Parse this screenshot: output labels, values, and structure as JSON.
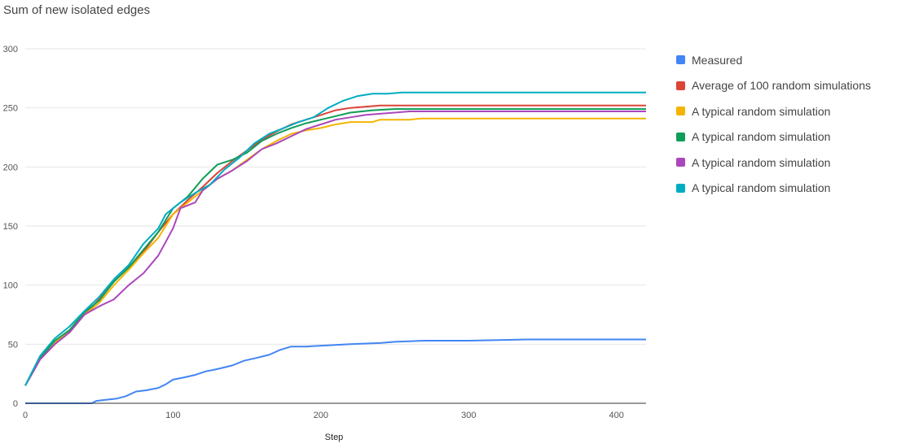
{
  "chart_data": {
    "type": "line",
    "title": "Sum of new isolated edges",
    "xlabel": "Step",
    "ylabel": "",
    "xlim": [
      0,
      420
    ],
    "ylim": [
      0,
      300
    ],
    "xticks": [
      0,
      100,
      200,
      300,
      400
    ],
    "yticks": [
      0,
      50,
      100,
      150,
      200,
      250,
      300
    ],
    "grid": true,
    "legend_position": "right",
    "series": [
      {
        "name": "Measured",
        "color": "#4285f4",
        "points": [
          [
            0,
            0
          ],
          [
            45,
            0
          ],
          [
            48,
            2
          ],
          [
            55,
            3
          ],
          [
            62,
            4
          ],
          [
            68,
            6
          ],
          [
            75,
            10
          ],
          [
            82,
            11
          ],
          [
            90,
            13
          ],
          [
            95,
            16
          ],
          [
            100,
            20
          ],
          [
            108,
            22
          ],
          [
            115,
            24
          ],
          [
            122,
            27
          ],
          [
            130,
            29
          ],
          [
            140,
            32
          ],
          [
            148,
            36
          ],
          [
            155,
            38
          ],
          [
            165,
            41
          ],
          [
            172,
            45
          ],
          [
            180,
            48
          ],
          [
            190,
            48
          ],
          [
            205,
            49
          ],
          [
            220,
            50
          ],
          [
            240,
            51
          ],
          [
            250,
            52
          ],
          [
            270,
            53
          ],
          [
            300,
            53
          ],
          [
            340,
            54
          ],
          [
            420,
            54
          ]
        ]
      },
      {
        "name": "Average of 100 random simulations",
        "color": "#db4437",
        "points": [
          [
            0,
            15
          ],
          [
            10,
            37
          ],
          [
            20,
            50
          ],
          [
            30,
            62
          ],
          [
            40,
            75
          ],
          [
            50,
            88
          ],
          [
            60,
            103
          ],
          [
            70,
            115
          ],
          [
            80,
            128
          ],
          [
            90,
            145
          ],
          [
            100,
            160
          ],
          [
            110,
            172
          ],
          [
            120,
            183
          ],
          [
            130,
            195
          ],
          [
            140,
            205
          ],
          [
            150,
            214
          ],
          [
            160,
            223
          ],
          [
            170,
            230
          ],
          [
            180,
            236
          ],
          [
            190,
            240
          ],
          [
            200,
            244
          ],
          [
            210,
            248
          ],
          [
            220,
            250
          ],
          [
            230,
            251
          ],
          [
            240,
            252
          ],
          [
            260,
            252
          ],
          [
            300,
            252
          ],
          [
            420,
            252
          ]
        ]
      },
      {
        "name": "A typical random simulation",
        "color": "#f4b400",
        "points": [
          [
            0,
            15
          ],
          [
            10,
            38
          ],
          [
            20,
            52
          ],
          [
            30,
            60
          ],
          [
            40,
            75
          ],
          [
            50,
            85
          ],
          [
            60,
            100
          ],
          [
            70,
            113
          ],
          [
            80,
            127
          ],
          [
            90,
            140
          ],
          [
            100,
            160
          ],
          [
            110,
            170
          ],
          [
            120,
            180
          ],
          [
            130,
            190
          ],
          [
            140,
            197
          ],
          [
            150,
            206
          ],
          [
            160,
            215
          ],
          [
            170,
            222
          ],
          [
            180,
            228
          ],
          [
            190,
            231
          ],
          [
            200,
            233
          ],
          [
            210,
            236
          ],
          [
            220,
            238
          ],
          [
            235,
            238
          ],
          [
            240,
            240
          ],
          [
            260,
            240
          ],
          [
            268,
            241
          ],
          [
            300,
            241
          ],
          [
            420,
            241
          ]
        ]
      },
      {
        "name": "A typical random simulation",
        "color": "#0f9d58",
        "points": [
          [
            0,
            15
          ],
          [
            10,
            38
          ],
          [
            20,
            53
          ],
          [
            30,
            62
          ],
          [
            40,
            77
          ],
          [
            50,
            87
          ],
          [
            60,
            103
          ],
          [
            70,
            115
          ],
          [
            80,
            130
          ],
          [
            90,
            145
          ],
          [
            100,
            165
          ],
          [
            110,
            175
          ],
          [
            120,
            190
          ],
          [
            130,
            202
          ],
          [
            140,
            206
          ],
          [
            150,
            212
          ],
          [
            160,
            222
          ],
          [
            170,
            228
          ],
          [
            180,
            233
          ],
          [
            190,
            237
          ],
          [
            200,
            240
          ],
          [
            210,
            243
          ],
          [
            220,
            246
          ],
          [
            235,
            248
          ],
          [
            250,
            249
          ],
          [
            300,
            249
          ],
          [
            420,
            249
          ]
        ]
      },
      {
        "name": "A typical random simulation",
        "color": "#ab47bc",
        "points": [
          [
            0,
            15
          ],
          [
            10,
            37
          ],
          [
            20,
            50
          ],
          [
            30,
            60
          ],
          [
            40,
            75
          ],
          [
            50,
            82
          ],
          [
            60,
            88
          ],
          [
            70,
            100
          ],
          [
            80,
            110
          ],
          [
            90,
            125
          ],
          [
            100,
            148
          ],
          [
            105,
            165
          ],
          [
            115,
            170
          ],
          [
            120,
            180
          ],
          [
            130,
            190
          ],
          [
            140,
            197
          ],
          [
            150,
            205
          ],
          [
            160,
            215
          ],
          [
            170,
            220
          ],
          [
            180,
            226
          ],
          [
            190,
            232
          ],
          [
            200,
            236
          ],
          [
            210,
            240
          ],
          [
            220,
            242
          ],
          [
            230,
            244
          ],
          [
            240,
            245
          ],
          [
            250,
            246
          ],
          [
            260,
            247
          ],
          [
            300,
            247
          ],
          [
            420,
            247
          ]
        ]
      },
      {
        "name": "A typical random simulation",
        "color": "#00acc1",
        "points": [
          [
            0,
            15
          ],
          [
            10,
            40
          ],
          [
            20,
            55
          ],
          [
            30,
            65
          ],
          [
            40,
            78
          ],
          [
            50,
            90
          ],
          [
            60,
            105
          ],
          [
            70,
            117
          ],
          [
            80,
            135
          ],
          [
            90,
            148
          ],
          [
            95,
            160
          ],
          [
            105,
            170
          ],
          [
            115,
            178
          ],
          [
            125,
            185
          ],
          [
            135,
            198
          ],
          [
            145,
            208
          ],
          [
            155,
            220
          ],
          [
            165,
            228
          ],
          [
            175,
            233
          ],
          [
            185,
            238
          ],
          [
            195,
            242
          ],
          [
            205,
            250
          ],
          [
            215,
            256
          ],
          [
            225,
            260
          ],
          [
            235,
            262
          ],
          [
            245,
            262
          ],
          [
            255,
            263
          ],
          [
            300,
            263
          ],
          [
            420,
            263
          ]
        ]
      }
    ]
  }
}
